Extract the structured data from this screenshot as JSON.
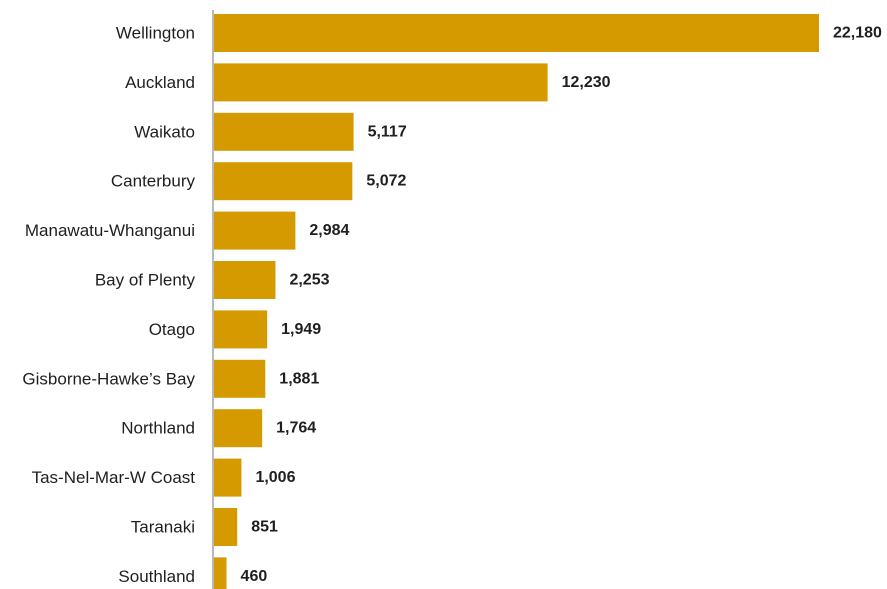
{
  "chart_data": {
    "type": "bar",
    "orientation": "horizontal",
    "title": "",
    "xlabel": "",
    "ylabel": "",
    "categories": [
      "Wellington",
      "Auckland",
      "Waikato",
      "Canterbury",
      "Manawatu-Whanganui",
      "Bay of Plenty",
      "Otago",
      "Gisborne-Hawke’s Bay",
      "Northland",
      "Tas-Nel-Mar-W Coast",
      "Taranaki",
      "Southland"
    ],
    "values": [
      22180,
      12230,
      5117,
      5072,
      2984,
      2253,
      1949,
      1881,
      1764,
      1006,
      851,
      460
    ],
    "value_labels": [
      "22,180",
      "12,230",
      "5,117",
      "5,072",
      "2,984",
      "2,253",
      "1,949",
      "1,881",
      "1,764",
      "1,006",
      "851",
      "460"
    ],
    "xlim": [
      0,
      22180
    ],
    "grid": false,
    "legend": "none",
    "colors": {
      "bar": "#d49a00",
      "axis": "#b8b8b8",
      "text": "#1f1f1f"
    }
  }
}
